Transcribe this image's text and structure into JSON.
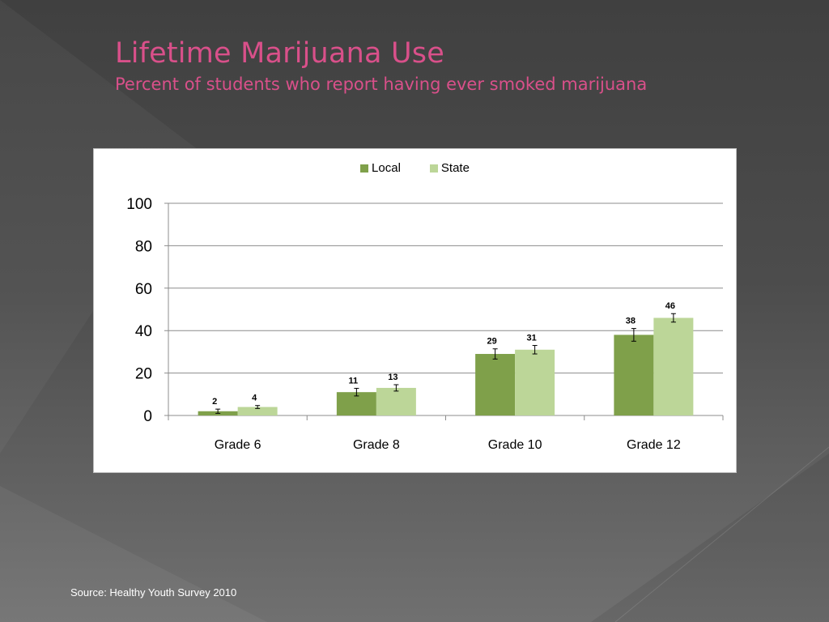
{
  "slide": {
    "title": "Lifetime Marijuana Use",
    "subtitle": "Percent of students who report having ever smoked marijuana",
    "source": "Source: Healthy Youth Survey 2010"
  },
  "colors": {
    "local": "#7fa04a",
    "state": "#bcd698",
    "title": "#d9508a"
  },
  "chart_data": {
    "type": "bar",
    "categories": [
      "Grade 6",
      "Grade 8",
      "Grade 10",
      "Grade 12"
    ],
    "series": [
      {
        "name": "Local",
        "values": [
          2,
          11,
          29,
          38
        ],
        "labels": [
          "2",
          "11",
          "29",
          "38"
        ],
        "error": [
          1,
          1.8,
          2.4,
          3
        ]
      },
      {
        "name": "State",
        "values": [
          4,
          13,
          31,
          46
        ],
        "labels": [
          "4",
          "13",
          "31",
          "46"
        ],
        "error": [
          0.7,
          1.5,
          2,
          2
        ]
      }
    ],
    "ylim": [
      0,
      100
    ],
    "yticks": [
      "0",
      "20",
      "40",
      "60",
      "80",
      "100"
    ],
    "grid": true,
    "legend": "top"
  }
}
